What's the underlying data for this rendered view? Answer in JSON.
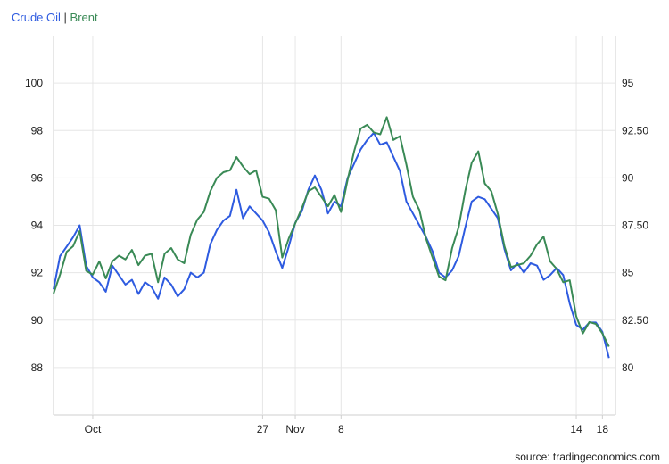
{
  "legend": {
    "series1": "Crude Oil",
    "separator": " | ",
    "series2": "Brent"
  },
  "source": "source: tradingeconomics.com",
  "colors": {
    "crude": "#2e5be0",
    "brent": "#3a8a56",
    "grid": "#e6e6e6",
    "axis": "#cfcfcf"
  },
  "chart_data": {
    "type": "line",
    "title": "",
    "grid": true,
    "x": {
      "type": "date",
      "range": [
        "2023-09-25",
        "2023-12-20"
      ],
      "ticks": [
        {
          "date": "2023-10-01",
          "label": "Oct"
        },
        {
          "date": "2023-10-27",
          "label": "27"
        },
        {
          "date": "2023-11-01",
          "label": "Nov"
        },
        {
          "date": "2023-11-08",
          "label": "8"
        },
        {
          "date": "2023-12-14",
          "label": "14"
        },
        {
          "date": "2023-12-18",
          "label": "18"
        }
      ]
    },
    "y_left": {
      "range": [
        86,
        102
      ],
      "ticks": [
        88,
        90,
        92,
        94,
        96,
        98,
        100
      ]
    },
    "y_right": {
      "range": [
        77.5,
        97.5
      ],
      "ticks": [
        "80",
        "82.50",
        "85",
        "87.50",
        "90",
        "92.50",
        "95"
      ]
    },
    "series": [
      {
        "name": "Crude Oil",
        "axis": "left",
        "points": [
          [
            "2023-09-25",
            91.3
          ],
          [
            "2023-09-26",
            92.7
          ],
          [
            "2023-09-27",
            93.1
          ],
          [
            "2023-09-28",
            93.5
          ],
          [
            "2023-09-29",
            94.0
          ],
          [
            "2023-09-30",
            92.3
          ],
          [
            "2023-10-01",
            91.8
          ],
          [
            "2023-10-02",
            91.6
          ],
          [
            "2023-10-03",
            91.2
          ],
          [
            "2023-10-04",
            92.3
          ],
          [
            "2023-10-05",
            91.9
          ],
          [
            "2023-10-06",
            91.5
          ],
          [
            "2023-10-07",
            91.7
          ],
          [
            "2023-10-08",
            91.1
          ],
          [
            "2023-10-09",
            91.6
          ],
          [
            "2023-10-10",
            91.4
          ],
          [
            "2023-10-11",
            90.9
          ],
          [
            "2023-10-12",
            91.8
          ],
          [
            "2023-10-13",
            91.5
          ],
          [
            "2023-10-14",
            91.0
          ],
          [
            "2023-10-15",
            91.3
          ],
          [
            "2023-10-16",
            92.0
          ],
          [
            "2023-10-17",
            91.8
          ],
          [
            "2023-10-18",
            92.0
          ],
          [
            "2023-10-19",
            93.2
          ],
          [
            "2023-10-20",
            93.8
          ],
          [
            "2023-10-21",
            94.2
          ],
          [
            "2023-10-22",
            94.4
          ],
          [
            "2023-10-23",
            95.5
          ],
          [
            "2023-10-24",
            94.3
          ],
          [
            "2023-10-25",
            94.8
          ],
          [
            "2023-10-26",
            94.5
          ],
          [
            "2023-10-27",
            94.2
          ],
          [
            "2023-10-28",
            93.7
          ],
          [
            "2023-10-29",
            92.9
          ],
          [
            "2023-10-30",
            92.2
          ],
          [
            "2023-10-31",
            93.1
          ],
          [
            "2023-11-01",
            94.1
          ],
          [
            "2023-11-02",
            94.6
          ],
          [
            "2023-11-03",
            95.5
          ],
          [
            "2023-11-04",
            96.1
          ],
          [
            "2023-11-05",
            95.5
          ],
          [
            "2023-11-06",
            94.5
          ],
          [
            "2023-11-07",
            95.0
          ],
          [
            "2023-11-08",
            94.8
          ],
          [
            "2023-11-09",
            96.0
          ],
          [
            "2023-11-10",
            96.6
          ],
          [
            "2023-11-11",
            97.2
          ],
          [
            "2023-11-12",
            97.6
          ],
          [
            "2023-11-13",
            97.9
          ],
          [
            "2023-11-14",
            97.4
          ],
          [
            "2023-11-15",
            97.5
          ],
          [
            "2023-11-16",
            96.9
          ],
          [
            "2023-11-17",
            96.3
          ],
          [
            "2023-11-18",
            95.0
          ],
          [
            "2023-11-19",
            94.5
          ],
          [
            "2023-11-20",
            94.0
          ],
          [
            "2023-11-21",
            93.5
          ],
          [
            "2023-11-22",
            92.9
          ],
          [
            "2023-11-23",
            92.0
          ],
          [
            "2023-11-24",
            91.8
          ],
          [
            "2023-11-25",
            92.1
          ],
          [
            "2023-11-26",
            92.7
          ],
          [
            "2023-11-27",
            93.9
          ],
          [
            "2023-11-28",
            95.0
          ],
          [
            "2023-11-29",
            95.2
          ],
          [
            "2023-11-30",
            95.1
          ],
          [
            "2023-12-01",
            94.7
          ],
          [
            "2023-12-02",
            94.3
          ],
          [
            "2023-12-03",
            93.0
          ],
          [
            "2023-12-04",
            92.1
          ],
          [
            "2023-12-05",
            92.4
          ],
          [
            "2023-12-06",
            92.0
          ],
          [
            "2023-12-07",
            92.4
          ],
          [
            "2023-12-08",
            92.3
          ],
          [
            "2023-12-09",
            91.7
          ],
          [
            "2023-12-10",
            91.9
          ],
          [
            "2023-12-11",
            92.2
          ],
          [
            "2023-12-12",
            91.9
          ],
          [
            "2023-12-13",
            90.7
          ],
          [
            "2023-12-14",
            89.8
          ],
          [
            "2023-12-15",
            89.6
          ],
          [
            "2023-12-16",
            89.9
          ],
          [
            "2023-12-17",
            89.9
          ],
          [
            "2023-12-18",
            89.5
          ],
          [
            "2023-12-19",
            88.4
          ]
        ]
      },
      {
        "name": "Brent",
        "axis": "right",
        "points": [
          [
            "2023-09-25",
            83.9
          ],
          [
            "2023-09-26",
            84.9
          ],
          [
            "2023-09-27",
            86.1
          ],
          [
            "2023-09-28",
            86.4
          ],
          [
            "2023-09-29",
            87.2
          ],
          [
            "2023-09-30",
            85.1
          ],
          [
            "2023-10-01",
            84.9
          ],
          [
            "2023-10-02",
            85.6
          ],
          [
            "2023-10-03",
            84.7
          ],
          [
            "2023-10-04",
            85.6
          ],
          [
            "2023-10-05",
            85.9
          ],
          [
            "2023-10-06",
            85.7
          ],
          [
            "2023-10-07",
            86.2
          ],
          [
            "2023-10-08",
            85.4
          ],
          [
            "2023-10-09",
            85.9
          ],
          [
            "2023-10-10",
            86.0
          ],
          [
            "2023-10-11",
            84.5
          ],
          [
            "2023-10-12",
            86.0
          ],
          [
            "2023-10-13",
            86.3
          ],
          [
            "2023-10-14",
            85.7
          ],
          [
            "2023-10-15",
            85.5
          ],
          [
            "2023-10-16",
            87.0
          ],
          [
            "2023-10-17",
            87.8
          ],
          [
            "2023-10-18",
            88.2
          ],
          [
            "2023-10-19",
            89.3
          ],
          [
            "2023-10-20",
            90.0
          ],
          [
            "2023-10-21",
            90.3
          ],
          [
            "2023-10-22",
            90.4
          ],
          [
            "2023-10-23",
            91.1
          ],
          [
            "2023-10-24",
            90.6
          ],
          [
            "2023-10-25",
            90.2
          ],
          [
            "2023-10-26",
            90.4
          ],
          [
            "2023-10-27",
            89.0
          ],
          [
            "2023-10-28",
            88.9
          ],
          [
            "2023-10-29",
            88.3
          ],
          [
            "2023-10-30",
            85.8
          ],
          [
            "2023-10-31",
            86.8
          ],
          [
            "2023-11-01",
            87.6
          ],
          [
            "2023-11-02",
            88.4
          ],
          [
            "2023-11-03",
            89.3
          ],
          [
            "2023-11-04",
            89.5
          ],
          [
            "2023-11-05",
            89.0
          ],
          [
            "2023-11-06",
            88.5
          ],
          [
            "2023-11-07",
            89.1
          ],
          [
            "2023-11-08",
            88.2
          ],
          [
            "2023-11-09",
            89.9
          ],
          [
            "2023-11-10",
            91.4
          ],
          [
            "2023-11-11",
            92.6
          ],
          [
            "2023-11-12",
            92.8
          ],
          [
            "2023-11-13",
            92.4
          ],
          [
            "2023-11-14",
            92.3
          ],
          [
            "2023-11-15",
            93.2
          ],
          [
            "2023-11-16",
            92.0
          ],
          [
            "2023-11-17",
            92.2
          ],
          [
            "2023-11-18",
            90.7
          ],
          [
            "2023-11-19",
            89.0
          ],
          [
            "2023-11-20",
            88.3
          ],
          [
            "2023-11-21",
            86.8
          ],
          [
            "2023-11-22",
            85.8
          ],
          [
            "2023-11-23",
            84.8
          ],
          [
            "2023-11-24",
            84.6
          ],
          [
            "2023-11-25",
            86.3
          ],
          [
            "2023-11-26",
            87.4
          ],
          [
            "2023-11-27",
            89.3
          ],
          [
            "2023-11-28",
            90.8
          ],
          [
            "2023-11-29",
            91.4
          ],
          [
            "2023-11-30",
            89.7
          ],
          [
            "2023-12-01",
            89.3
          ],
          [
            "2023-12-02",
            88.1
          ],
          [
            "2023-12-03",
            86.4
          ],
          [
            "2023-12-04",
            85.3
          ],
          [
            "2023-12-05",
            85.4
          ],
          [
            "2023-12-06",
            85.5
          ],
          [
            "2023-12-07",
            85.9
          ],
          [
            "2023-12-08",
            86.5
          ],
          [
            "2023-12-09",
            86.9
          ],
          [
            "2023-12-10",
            85.6
          ],
          [
            "2023-12-11",
            85.2
          ],
          [
            "2023-12-12",
            84.5
          ],
          [
            "2023-12-13",
            84.6
          ],
          [
            "2023-12-14",
            82.7
          ],
          [
            "2023-12-15",
            81.8
          ],
          [
            "2023-12-16",
            82.4
          ],
          [
            "2023-12-17",
            82.3
          ],
          [
            "2023-12-18",
            81.8
          ],
          [
            "2023-12-19",
            81.1
          ]
        ]
      }
    ]
  }
}
